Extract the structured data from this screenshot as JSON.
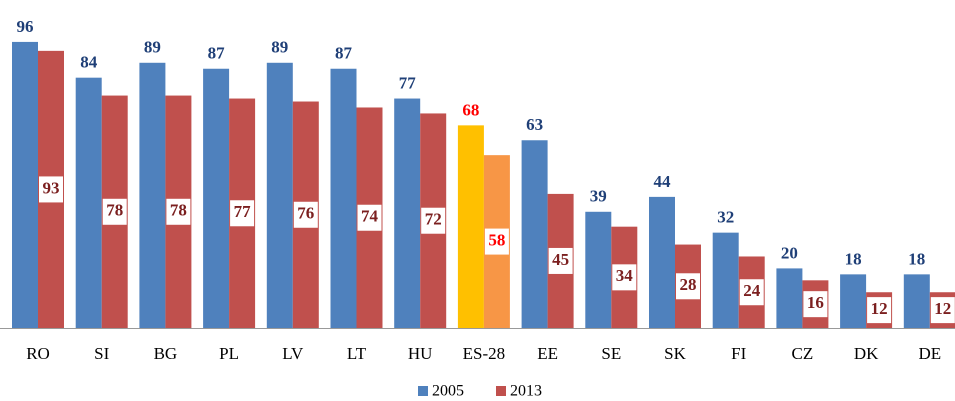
{
  "chart_data": {
    "type": "bar",
    "categories": [
      "RO",
      "SI",
      "BG",
      "PL",
      "LV",
      "LT",
      "HU",
      "ES-28",
      "EE",
      "SE",
      "SK",
      "FI",
      "CZ",
      "DK",
      "DE"
    ],
    "series": [
      {
        "name": "2005",
        "color": "#4f81bd",
        "values": [
          96,
          84,
          89,
          87,
          89,
          87,
          77,
          68,
          63,
          39,
          44,
          32,
          20,
          18,
          18
        ],
        "colors": [
          "#4f81bd",
          "#4f81bd",
          "#4f81bd",
          "#4f81bd",
          "#4f81bd",
          "#4f81bd",
          "#4f81bd",
          "#ffc000",
          "#4f81bd",
          "#4f81bd",
          "#4f81bd",
          "#4f81bd",
          "#4f81bd",
          "#4f81bd",
          "#4f81bd"
        ],
        "label_colors": [
          "#1f3f77",
          "#1f3f77",
          "#1f3f77",
          "#1f3f77",
          "#1f3f77",
          "#1f3f77",
          "#1f3f77",
          "#ff0000",
          "#1f3f77",
          "#1f3f77",
          "#1f3f77",
          "#1f3f77",
          "#1f3f77",
          "#1f3f77",
          "#1f3f77"
        ]
      },
      {
        "name": "2013",
        "color": "#c0504d",
        "values": [
          93,
          78,
          78,
          77,
          76,
          74,
          72,
          58,
          45,
          34,
          28,
          24,
          16,
          12,
          12
        ],
        "colors": [
          "#c0504d",
          "#c0504d",
          "#c0504d",
          "#c0504d",
          "#c0504d",
          "#c0504d",
          "#c0504d",
          "#f79646",
          "#c0504d",
          "#c0504d",
          "#c0504d",
          "#c0504d",
          "#c0504d",
          "#c0504d",
          "#c0504d"
        ],
        "label_colors": [
          "#7b1f1f",
          "#7b1f1f",
          "#7b1f1f",
          "#7b1f1f",
          "#7b1f1f",
          "#7b1f1f",
          "#7b1f1f",
          "#ff0000",
          "#7b1f1f",
          "#7b1f1f",
          "#7b1f1f",
          "#7b1f1f",
          "#7b1f1f",
          "#7b1f1f",
          "#7b1f1f"
        ]
      }
    ],
    "legend": "bottom"
  }
}
